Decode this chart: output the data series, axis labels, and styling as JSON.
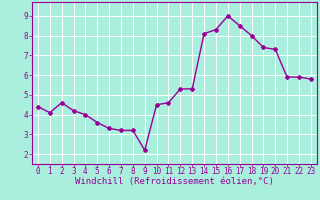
{
  "x": [
    0,
    1,
    2,
    3,
    4,
    5,
    6,
    7,
    8,
    9,
    10,
    11,
    12,
    13,
    14,
    15,
    16,
    17,
    18,
    19,
    20,
    21,
    22,
    23
  ],
  "y": [
    4.4,
    4.1,
    4.6,
    4.2,
    4.0,
    3.6,
    3.3,
    3.2,
    3.2,
    2.2,
    4.5,
    4.6,
    5.3,
    5.3,
    8.1,
    8.3,
    9.0,
    8.5,
    8.0,
    7.4,
    7.3,
    5.9,
    5.9,
    5.8
  ],
  "line_color": "#990099",
  "marker": "D",
  "marker_size": 2.0,
  "bg_color": "#aaeedd",
  "grid_color": "#ffffff",
  "xlabel": "Windchill (Refroidissement éolien,°C)",
  "xlabel_color": "#990099",
  "xlabel_fontsize": 6.5,
  "xlim": [
    -0.5,
    23.5
  ],
  "ylim": [
    1.5,
    9.7
  ],
  "yticks": [
    2,
    3,
    4,
    5,
    6,
    7,
    8,
    9
  ],
  "xticks": [
    0,
    1,
    2,
    3,
    4,
    5,
    6,
    7,
    8,
    9,
    10,
    11,
    12,
    13,
    14,
    15,
    16,
    17,
    18,
    19,
    20,
    21,
    22,
    23
  ],
  "tick_fontsize": 5.5,
  "tick_color": "#990099",
  "spine_color": "#990099",
  "line_width": 1.0
}
